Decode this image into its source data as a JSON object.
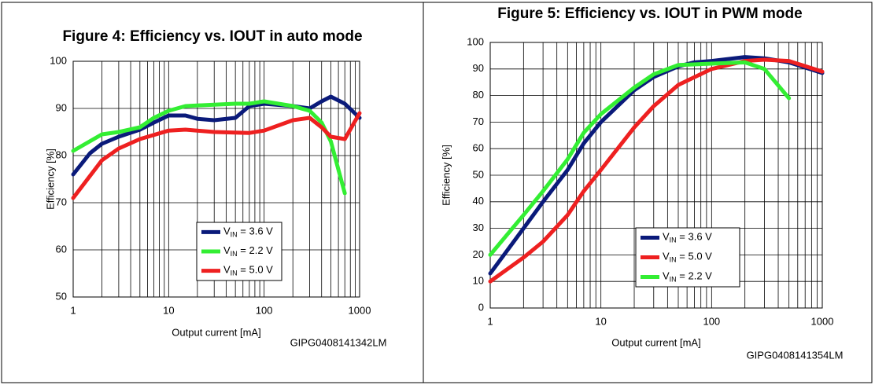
{
  "chart_data": [
    {
      "type": "line",
      "title": "Figure 4: Efficiency vs. IOUT in auto mode",
      "y_label": "Efficiency [%]",
      "x_label": "Output current [mA]",
      "code": "GIPG0408141342LM",
      "log_x": true,
      "grid": true,
      "xlim": [
        1,
        1000
      ],
      "xticks": [
        1,
        10,
        100,
        1000
      ],
      "ylim": [
        50,
        100
      ],
      "yticks": [
        50,
        60,
        70,
        80,
        90,
        100
      ],
      "series": [
        {
          "name": "VIN = 3.6 V",
          "color": "#0a1a7a",
          "x": [
            1,
            1.5,
            2,
            3,
            5,
            7,
            10,
            15,
            20,
            30,
            50,
            70,
            100,
            200,
            300,
            400,
            500,
            700,
            1000
          ],
          "values": [
            76,
            80.5,
            82.5,
            84,
            85.5,
            87,
            88.5,
            88.5,
            87.8,
            87.5,
            88,
            90.5,
            91,
            90.5,
            90,
            91.5,
            92.5,
            91,
            88
          ]
        },
        {
          "name": "VIN = 2.2 V",
          "color": "#33ee33",
          "x": [
            1,
            2,
            3,
            5,
            7,
            10,
            15,
            30,
            50,
            70,
            100,
            200,
            300,
            400,
            500,
            600,
            700
          ],
          "values": [
            81,
            84.5,
            85,
            86,
            88,
            89.5,
            90.5,
            90.8,
            91,
            91,
            91.5,
            90.5,
            89.5,
            87,
            83,
            77,
            72
          ]
        },
        {
          "name": "VIN = 5.0 V",
          "color": "#ee2020",
          "x": [
            1,
            2,
            3,
            5,
            10,
            15,
            30,
            70,
            100,
            200,
            300,
            400,
            500,
            700,
            1000
          ],
          "values": [
            71,
            79,
            81.5,
            83.5,
            85.3,
            85.5,
            85,
            84.8,
            85.3,
            87.5,
            88,
            86,
            84,
            83.5,
            89
          ]
        }
      ]
    },
    {
      "type": "line",
      "title": "Figure 5: Efficiency vs. IOUT in PWM mode",
      "y_label": "Efficiency [%]",
      "x_label": "Output current [mA]",
      "code": "GIPG0408141354LM",
      "log_x": true,
      "grid": true,
      "xlim": [
        1,
        1000
      ],
      "xticks": [
        1,
        10,
        100,
        1000
      ],
      "ylim": [
        0,
        100
      ],
      "yticks": [
        0,
        10,
        20,
        30,
        40,
        50,
        60,
        70,
        80,
        90,
        100
      ],
      "series": [
        {
          "name": "VIN = 3.6 V",
          "color": "#0a1a7a",
          "x": [
            1,
            2,
            3,
            5,
            7,
            10,
            20,
            30,
            50,
            70,
            100,
            200,
            300,
            500,
            1000
          ],
          "values": [
            13,
            30,
            40,
            52,
            62,
            70,
            82,
            87,
            91,
            92.5,
            93,
            94.5,
            94,
            92.5,
            88.5
          ]
        },
        {
          "name": "VIN = 5.0 V",
          "color": "#ee2020",
          "x": [
            1,
            2,
            3,
            5,
            7,
            10,
            20,
            30,
            50,
            100,
            200,
            300,
            500,
            1000
          ],
          "values": [
            10,
            19,
            25,
            35,
            44,
            52,
            68,
            76,
            84,
            90,
            93,
            93.5,
            93,
            89
          ]
        },
        {
          "name": "VIN = 2.2 V",
          "color": "#33ee33",
          "x": [
            1,
            2,
            3,
            5,
            7,
            10,
            20,
            30,
            50,
            100,
            200,
            300,
            500
          ],
          "values": [
            20,
            35,
            44,
            56,
            66,
            73,
            83,
            88,
            91.5,
            92,
            92.5,
            90,
            79
          ]
        }
      ]
    }
  ]
}
